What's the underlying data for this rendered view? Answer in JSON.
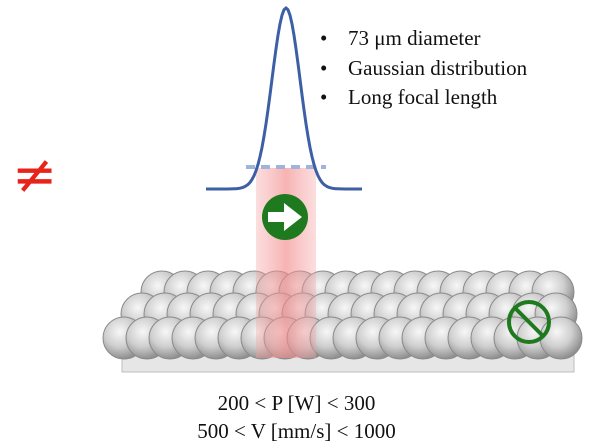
{
  "bullets": [
    "73 μm diameter",
    "Gaussian distribution",
    "Long focal length"
  ],
  "not_equal_symbol": "≠",
  "parameters": {
    "power": "200 < P [W] < 300",
    "velocity": "500 < V [mm/s] < 1000"
  },
  "colors": {
    "gaussian_curve": "#3d5fa6",
    "beam_width_dashes": "#9fb3dd",
    "laser_beam": "#f5a0a0",
    "scan_direction_arrow": "#1f7a1f",
    "prohibited_sign": "#1f7a1f",
    "not_equal": "#e8231a",
    "powder_particle": "#b8b8b8",
    "substrate": "#e6e6e6"
  },
  "icons": {
    "scan_direction": "right-arrow-icon",
    "prohibited": "prohibited-icon"
  }
}
